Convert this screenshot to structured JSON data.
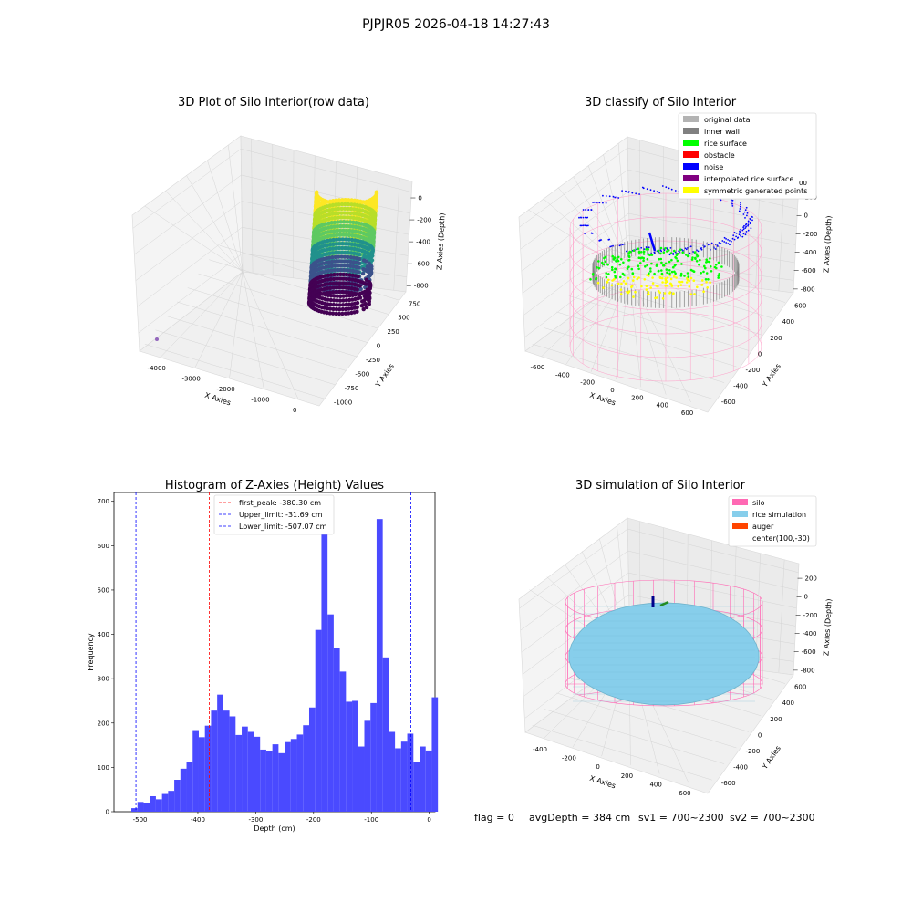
{
  "figure": {
    "suptitle": "PJPJR05 2026-04-18 14:27:43",
    "status": {
      "flag": "flag = 0",
      "avg_depth": "avgDepth = 384 cm",
      "sv1": "sv1 = 700~2300",
      "sv2": "sv2 = 700~2300"
    }
  },
  "chart_data": [
    {
      "type": "scatter",
      "title": "3D Plot of Silo Interior(row data)",
      "xlabel": "X Axies",
      "ylabel": "Y Axies",
      "zlabel": "Z Axies (Depth)",
      "x_ticks": [
        "-4000",
        "-3000",
        "-2000",
        "-1000",
        "0"
      ],
      "y_ticks": [
        "-1000",
        "-750",
        "-500",
        "-250",
        "0",
        "250",
        "500",
        "750"
      ],
      "z_ticks": [
        "0",
        "-200",
        "-400",
        "-600",
        "-800"
      ],
      "colormap": "viridis",
      "outlier_color": "#9467bd"
    },
    {
      "type": "scatter",
      "title": "3D classify of Silo Interior",
      "xlabel": "X Axies",
      "ylabel": "Y Axies",
      "zlabel": "Z Axies (Depth)",
      "x_ticks": [
        "-600",
        "-400",
        "-200",
        "0",
        "200",
        "400",
        "600"
      ],
      "y_ticks": [
        "-600",
        "-400",
        "-200",
        "0",
        "200",
        "400",
        "600"
      ],
      "z_ticks": [
        "200",
        "0",
        "-200",
        "-400",
        "-600",
        "-800"
      ],
      "z_top_tick": "00",
      "legend": [
        {
          "label": "original data",
          "color": "#b3b3b3"
        },
        {
          "label": "inner wall",
          "color": "#808080"
        },
        {
          "label": "rice surface",
          "color": "#00ff00"
        },
        {
          "label": "obstacle",
          "color": "#ff0000"
        },
        {
          "label": "noise",
          "color": "#0000ff"
        },
        {
          "label": "interpolated rice surface",
          "color": "#800080"
        },
        {
          "label": "symmetric generated points",
          "color": "#ffff00"
        }
      ],
      "legend_loc": "upper-right",
      "cylinder_color": "#ff9ec8"
    },
    {
      "type": "bar",
      "title": "Histogram of Z-Axies (Height) Values",
      "xlabel": "Depth (cm)",
      "ylabel": "Frequency",
      "xlim": [
        -545,
        10
      ],
      "ylim": [
        0,
        720
      ],
      "x_ticks": [
        -500,
        -400,
        -300,
        -200,
        -100,
        0
      ],
      "y_ticks": [
        0,
        100,
        200,
        300,
        400,
        500,
        600,
        700
      ],
      "bar_color": "#4a4aff",
      "bin_start": -515,
      "bin_width": 10.6,
      "values": [
        8,
        22,
        20,
        35,
        28,
        40,
        47,
        72,
        97,
        113,
        184,
        168,
        194,
        228,
        264,
        228,
        215,
        173,
        192,
        180,
        169,
        140,
        136,
        152,
        132,
        157,
        164,
        174,
        195,
        235,
        410,
        680,
        445,
        369,
        316,
        248,
        250,
        147,
        205,
        245,
        660,
        348,
        180,
        143,
        158,
        176,
        113,
        147,
        138,
        258
      ],
      "lines": [
        {
          "label": "first_peak: -380.30 cm",
          "x": -380.3,
          "color": "#ff0000"
        },
        {
          "label": "Upper_limit: -31.69 cm",
          "x": -31.69,
          "color": "#0000ff"
        },
        {
          "label": "Lower_limit: -507.07 cm",
          "x": -507.07,
          "color": "#0000ff"
        }
      ],
      "legend_loc": "upper-center"
    },
    {
      "type": "scatter",
      "title": "3D simulation of Silo Interior",
      "xlabel": "X Axies",
      "ylabel": "Y Axies",
      "zlabel": "Z Axies (Depth)",
      "x_ticks": [
        "-400",
        "-200",
        "0",
        "200",
        "400",
        "600"
      ],
      "y_ticks": [
        "-600",
        "-400",
        "-200",
        "0",
        "200",
        "400",
        "600"
      ],
      "z_ticks": [
        "200",
        "0",
        "-200",
        "-400",
        "-600",
        "-800"
      ],
      "legend": [
        {
          "label": "silo",
          "color": "#ff69b4"
        },
        {
          "label": "rice simulation",
          "color": "#87ceeb"
        },
        {
          "label": "auger",
          "color": "#ff4500"
        },
        {
          "label": "center(100,-30)",
          "color": ""
        }
      ],
      "legend_loc": "upper-right",
      "surface_color": "#87ceeb",
      "silo_color": "#ff69b4"
    }
  ]
}
